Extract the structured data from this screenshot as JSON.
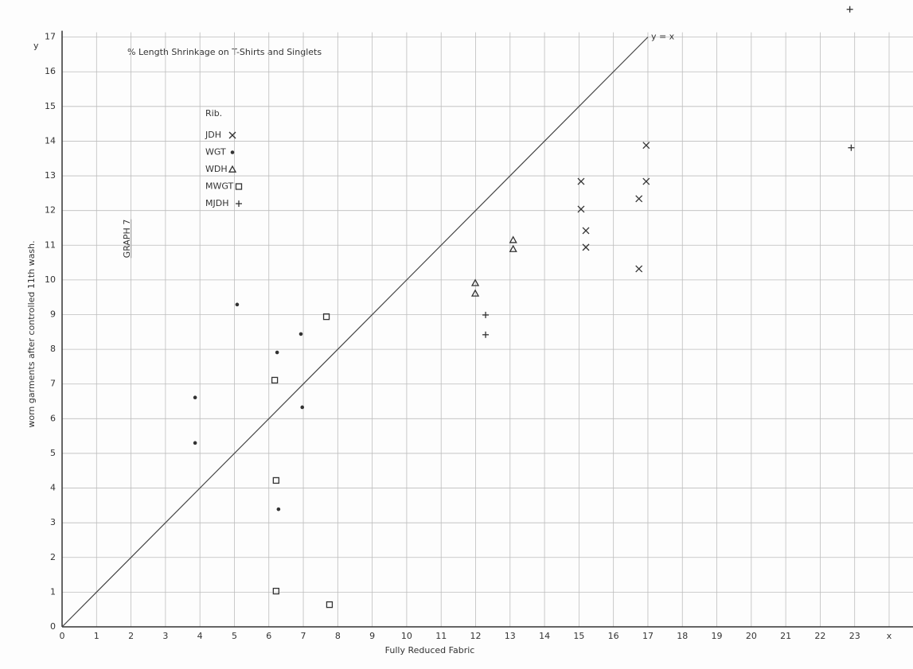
{
  "chart_data": {
    "type": "scatter",
    "title": "% Length Shrinkage on T-Shirts and Singlets",
    "annotation": "GRAPH 7",
    "legend_title": "Rib.",
    "x_label": "Fully Reduced Fabric",
    "y_label": "worn garments after controlled 11th wash.",
    "y_symbol": "y",
    "reference_line": {
      "label": "y = x",
      "x": [
        0,
        17
      ],
      "y": [
        0,
        17
      ]
    },
    "xlim": [
      0,
      24
    ],
    "ylim": [
      0,
      18
    ],
    "xticks": [
      0,
      1,
      2,
      3,
      4,
      5,
      6,
      7,
      8,
      9,
      10,
      11,
      12,
      13,
      14,
      15,
      16,
      17,
      18,
      19,
      20,
      21,
      22,
      23,
      {
        "value": 24,
        "label": "x"
      }
    ],
    "yticks": [
      0,
      1,
      2,
      3,
      4,
      5,
      6,
      7,
      8,
      9,
      10,
      11,
      12,
      13,
      14,
      15,
      16,
      17
    ],
    "grid": true,
    "series": [
      {
        "name": "JDH",
        "marker": "x",
        "color": "#333333",
        "x": [
          15.06,
          15.06,
          15.2,
          15.2,
          16.95,
          16.95,
          16.74,
          16.74
        ],
        "values": [
          12.84,
          12.04,
          11.42,
          10.94,
          13.88,
          12.84,
          12.34,
          10.32
        ]
      },
      {
        "name": "WGT",
        "marker": "dot",
        "color": "#333333",
        "x": [
          3.86,
          3.86,
          5.08,
          6.24,
          6.93,
          6.97,
          6.28
        ],
        "values": [
          6.61,
          5.3,
          9.29,
          7.91,
          8.44,
          6.33,
          3.39
        ]
      },
      {
        "name": "WDH",
        "marker": "triangle",
        "color": "#333333",
        "x": [
          13.09,
          13.09,
          11.99,
          11.99
        ],
        "values": [
          11.15,
          10.89,
          9.91,
          9.61
        ]
      },
      {
        "name": "MWGT",
        "marker": "square",
        "color": "#333333",
        "x": [
          7.67,
          6.17,
          6.21,
          6.21,
          7.76
        ],
        "values": [
          8.94,
          7.11,
          4.22,
          1.03,
          0.64
        ]
      },
      {
        "name": "MJDH",
        "marker": "plus",
        "color": "#333333",
        "x": [
          22.86,
          22.9,
          12.29,
          12.29
        ],
        "values": [
          17.8,
          13.81,
          8.99,
          8.42
        ]
      }
    ]
  }
}
